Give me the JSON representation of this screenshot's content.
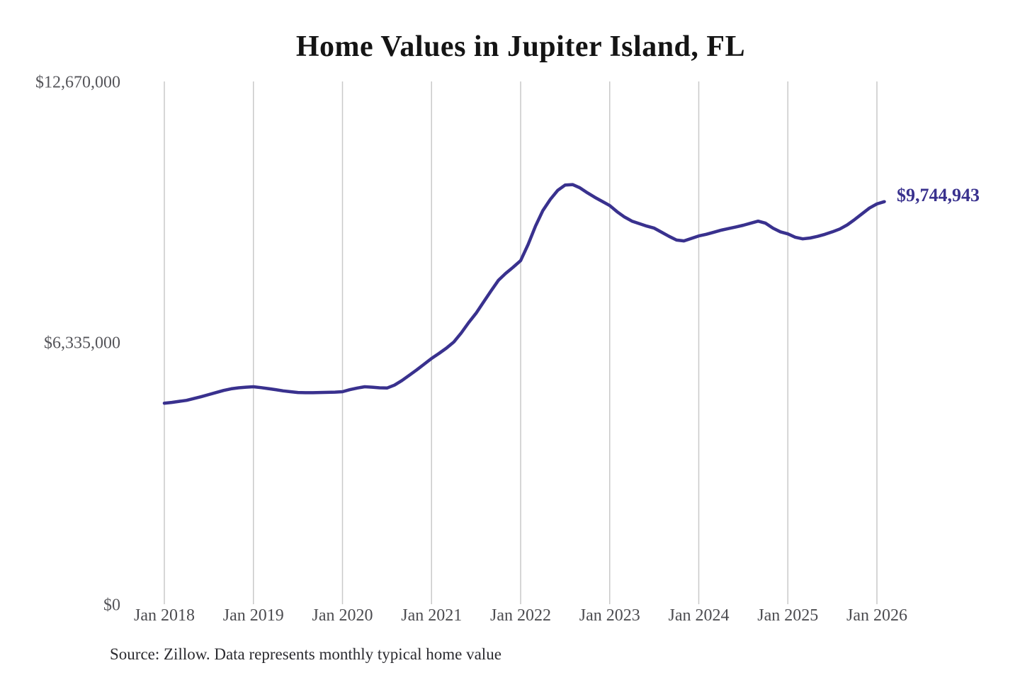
{
  "title": "Home Values in Jupiter Island, FL",
  "annotation": {
    "current_value": "$9,744,943"
  },
  "source_note": "Source: Zillow. Data represents monthly typical home value",
  "colors": {
    "line": "#39318e",
    "end_label": "#39318e",
    "gridline": "#c9c9c9",
    "title": "#141414",
    "axis_labels": "#55555a"
  },
  "chart_data": {
    "type": "line",
    "title": "Home Values in Jupiter Island, FL",
    "xlabel": "",
    "ylabel": "",
    "ylim": [
      0,
      12670000
    ],
    "grid": "vertical-only",
    "legend": "none",
    "y_ticks": [
      0,
      6335000,
      12670000
    ],
    "y_tick_labels": [
      "$0",
      "$6,335,000",
      "$12,670,000"
    ],
    "x_tick_labels": [
      "Jan 2018",
      "Jan 2019",
      "Jan 2020",
      "Jan 2021",
      "Jan 2022",
      "Jan 2023",
      "Jan 2024",
      "Jan 2025",
      "Jan 2026"
    ],
    "end_label": "$9,744,943",
    "final_value": 9744943,
    "months": [
      "2018-01",
      "2018-02",
      "2018-03",
      "2018-04",
      "2018-05",
      "2018-06",
      "2018-07",
      "2018-08",
      "2018-09",
      "2018-10",
      "2018-11",
      "2018-12",
      "2019-01",
      "2019-02",
      "2019-03",
      "2019-04",
      "2019-05",
      "2019-06",
      "2019-07",
      "2019-08",
      "2019-09",
      "2019-10",
      "2019-11",
      "2019-12",
      "2020-01",
      "2020-02",
      "2020-03",
      "2020-04",
      "2020-05",
      "2020-06",
      "2020-07",
      "2020-08",
      "2020-09",
      "2020-10",
      "2020-11",
      "2020-12",
      "2021-01",
      "2021-02",
      "2021-03",
      "2021-04",
      "2021-05",
      "2021-06",
      "2021-07",
      "2021-08",
      "2021-09",
      "2021-10",
      "2021-11",
      "2021-12",
      "2022-01",
      "2022-02",
      "2022-03",
      "2022-04",
      "2022-05",
      "2022-06",
      "2022-07",
      "2022-08",
      "2022-09",
      "2022-10",
      "2022-11",
      "2022-12",
      "2023-01",
      "2023-02",
      "2023-03",
      "2023-04",
      "2023-05",
      "2023-06",
      "2023-07",
      "2023-08",
      "2023-09",
      "2023-10",
      "2023-11",
      "2023-12",
      "2024-01",
      "2024-02",
      "2024-03",
      "2024-04",
      "2024-05",
      "2024-06",
      "2024-07",
      "2024-08",
      "2024-09",
      "2024-10",
      "2024-11",
      "2024-12",
      "2025-01",
      "2025-02",
      "2025-03",
      "2025-04",
      "2025-05",
      "2025-06",
      "2025-07",
      "2025-08",
      "2025-09",
      "2025-10",
      "2025-11",
      "2025-12",
      "2026-01",
      "2026-02"
    ],
    "values": [
      4840000,
      4860000,
      4885000,
      4910000,
      4955000,
      5000000,
      5050000,
      5100000,
      5150000,
      5190000,
      5215000,
      5230000,
      5240000,
      5220000,
      5195000,
      5170000,
      5140000,
      5120000,
      5100000,
      5095000,
      5095000,
      5100000,
      5105000,
      5110000,
      5120000,
      5170000,
      5210000,
      5240000,
      5230000,
      5215000,
      5210000,
      5280000,
      5390000,
      5520000,
      5650000,
      5790000,
      5930000,
      6050000,
      6180000,
      6330000,
      6550000,
      6800000,
      7030000,
      7300000,
      7570000,
      7830000,
      8000000,
      8150000,
      8310000,
      8700000,
      9150000,
      9530000,
      9800000,
      10020000,
      10150000,
      10160000,
      10080000,
      9960000,
      9850000,
      9750000,
      9650000,
      9500000,
      9370000,
      9270000,
      9210000,
      9150000,
      9100000,
      9000000,
      8900000,
      8810000,
      8790000,
      8850000,
      8910000,
      8950000,
      9000000,
      9050000,
      9090000,
      9130000,
      9170000,
      9220000,
      9270000,
      9220000,
      9100000,
      9010000,
      8960000,
      8880000,
      8840000,
      8860000,
      8900000,
      8950000,
      9010000,
      9080000,
      9180000,
      9310000,
      9450000,
      9590000,
      9690000,
      9744943
    ]
  }
}
